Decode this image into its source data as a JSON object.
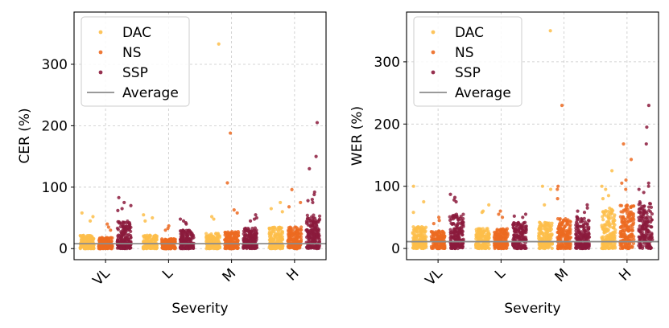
{
  "chart_data": [
    {
      "type": "scatter",
      "subtype": "strip",
      "title": "",
      "xlabel": "Severity",
      "ylabel": "CER (%)",
      "categories": [
        "VL",
        "L",
        "M",
        "H"
      ],
      "ylim": [
        -18,
        385
      ],
      "yticks": [
        0,
        100,
        200,
        300
      ],
      "grid": true,
      "legend_position": "top-left",
      "average_label": "Average",
      "average": 8,
      "series": [
        {
          "name": "DAC",
          "color": "#FDBE4A",
          "spread": {
            "VL": [
              0,
              22
            ],
            "L": [
              0,
              22
            ],
            "M": [
              0,
              25
            ],
            "H": [
              0,
              35
            ]
          },
          "outliers": {
            "VL": [
              58,
              52,
              45
            ],
            "L": [
              55,
              50,
              45
            ],
            "M": [
              333,
              52,
              48
            ],
            "H": [
              75,
              65,
              60
            ]
          }
        },
        {
          "name": "NS",
          "color": "#EC6A21",
          "spread": {
            "VL": [
              0,
              18
            ],
            "L": [
              0,
              16
            ],
            "M": [
              0,
              28
            ],
            "H": [
              0,
              35
            ]
          },
          "outliers": {
            "VL": [
              40,
              35,
              30
            ],
            "L": [
              37,
              33,
              30
            ],
            "M": [
              188,
              107,
              63,
              58
            ],
            "H": [
              96,
              75,
              68
            ]
          }
        },
        {
          "name": "SSP",
          "color": "#8B1A3C",
          "spread": {
            "VL": [
              0,
              45
            ],
            "L": [
              0,
              30
            ],
            "M": [
              0,
              35
            ],
            "H": [
              0,
              55
            ]
          },
          "outliers": {
            "VL": [
              83,
              75,
              70,
              65,
              62
            ],
            "L": [
              48,
              45,
              42,
              40
            ],
            "M": [
              55,
              50,
              48,
              45
            ],
            "H": [
              205,
              150,
              130,
              92,
              88,
              80,
              78,
              75
            ]
          }
        }
      ]
    },
    {
      "type": "scatter",
      "subtype": "strip",
      "title": "",
      "xlabel": "Severity",
      "ylabel": "WER (%)",
      "categories": [
        "VL",
        "L",
        "M",
        "H"
      ],
      "ylim": [
        -18,
        380
      ],
      "yticks": [
        0,
        100,
        200,
        300
      ],
      "grid": true,
      "legend_position": "top-left",
      "average_label": "Average",
      "average": 11,
      "series": [
        {
          "name": "DAC",
          "color": "#FDBE4A",
          "spread": {
            "VL": [
              0,
              35
            ],
            "L": [
              0,
              32
            ],
            "M": [
              0,
              42
            ],
            "H": [
              0,
              65
            ]
          },
          "outliers": {
            "VL": [
              100,
              75,
              58
            ],
            "L": [
              70,
              60,
              58
            ],
            "M": [
              350,
              100,
              95,
              70
            ],
            "H": [
              125,
              100,
              95,
              85,
              80
            ]
          }
        },
        {
          "name": "NS",
          "color": "#EC6A21",
          "spread": {
            "VL": [
              0,
              28
            ],
            "L": [
              0,
              32
            ],
            "M": [
              0,
              48
            ],
            "H": [
              0,
              70
            ]
          },
          "outliers": {
            "VL": [
              50,
              45,
              40
            ],
            "L": [
              60,
              55,
              50
            ],
            "M": [
              230,
              100,
              95,
              80
            ],
            "H": [
              168,
              143,
              110,
              105,
              95
            ]
          }
        },
        {
          "name": "SSP",
          "color": "#8B1A3C",
          "spread": {
            "VL": [
              0,
              55
            ],
            "L": [
              0,
              42
            ],
            "M": [
              0,
              52
            ],
            "H": [
              0,
              75
            ]
          },
          "outliers": {
            "VL": [
              87,
              82,
              78,
              75
            ],
            "L": [
              55,
              52,
              50
            ],
            "M": [
              70,
              65,
              60,
              58
            ],
            "H": [
              230,
              195,
              168,
              105,
              100,
              95,
              90
            ]
          }
        }
      ]
    }
  ]
}
